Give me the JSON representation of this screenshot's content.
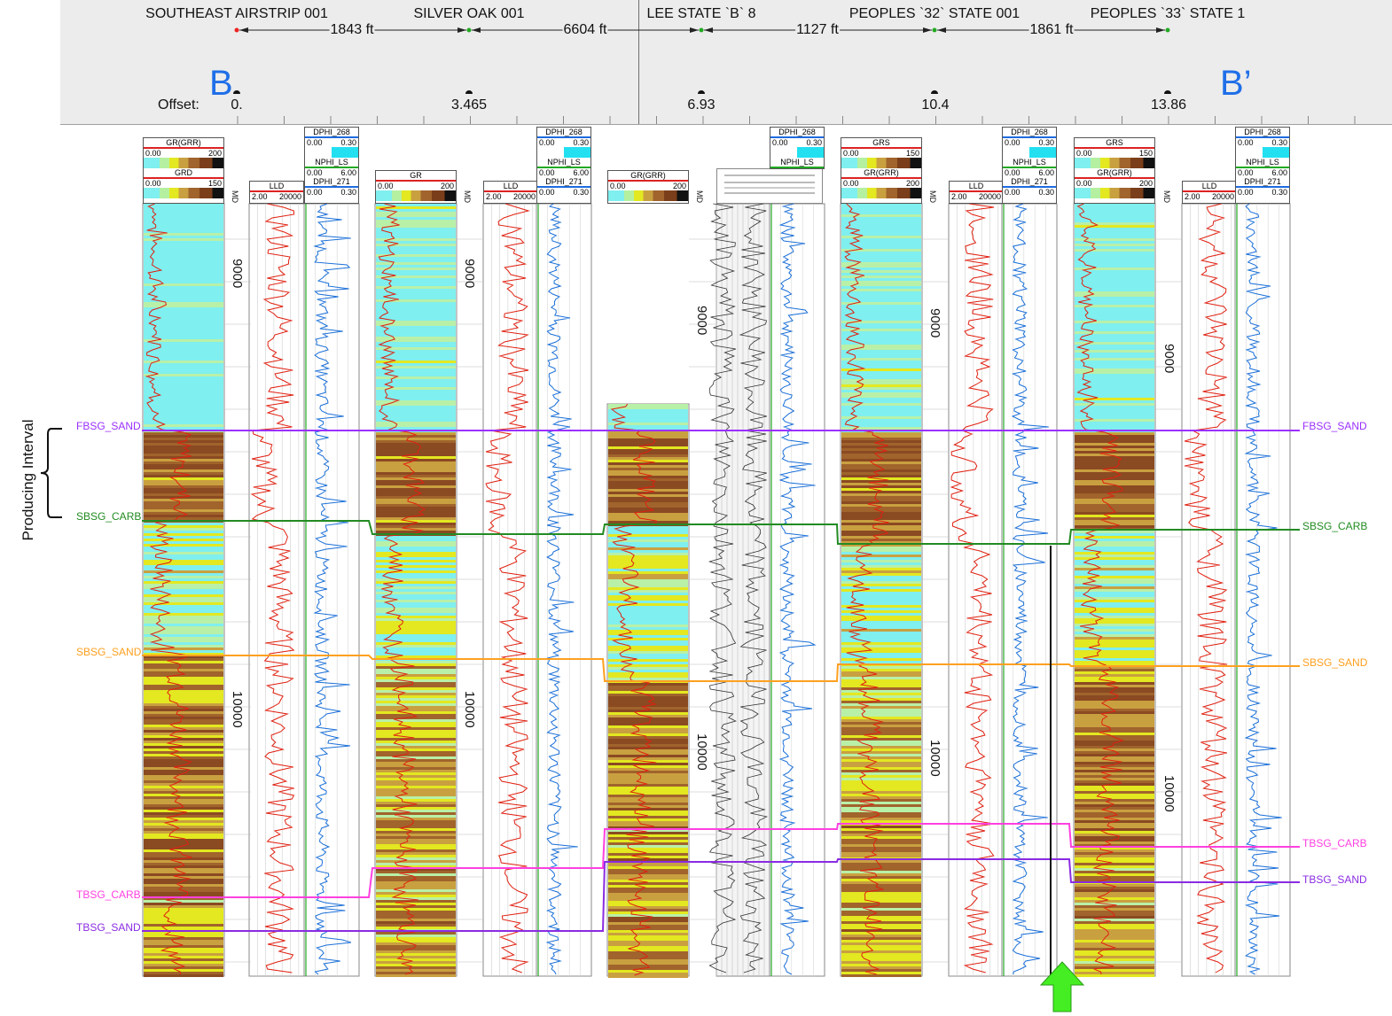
{
  "wells": [
    {
      "name": "SOUTHEAST AIRSTRIP 001",
      "offset": "0."
    },
    {
      "name": "SILVER OAK 001",
      "offset": "3.465"
    },
    {
      "name": "LEE STATE `B` 8",
      "offset": "6.93"
    },
    {
      "name": "PEOPLES `32` STATE 001",
      "offset": "10.4"
    },
    {
      "name": "PEOPLES `33` STATE 1",
      "offset": "13.86"
    }
  ],
  "distances": [
    "1843 ft",
    "6604 ft",
    "1127 ft",
    "1861 ft"
  ],
  "offset_label": "Offset:",
  "section_start": "B",
  "section_end": "B’",
  "producing_interval": "Producing Interval",
  "formations": [
    {
      "name": "FBSG_SAND",
      "color": "#9b30ff"
    },
    {
      "name": "SBSG_CARB",
      "color": "#228b22"
    },
    {
      "name": "SBSG_SAND",
      "color": "#ffa020"
    },
    {
      "name": "TBSG_CARB",
      "color": "#ff40e0"
    },
    {
      "name": "TBSG_SAND",
      "color": "#8a2be2"
    }
  ],
  "depth_labels": {
    "a": "9000",
    "b": "10000"
  },
  "md_label": "MD",
  "tracks": {
    "w1_gr": {
      "name": "GR(GRR)",
      "min": "0.00",
      "max": "200"
    },
    "w1_grd": {
      "name": "GRD",
      "min": "0.00",
      "max": "150"
    },
    "w1_lld": {
      "name": "LLD",
      "min": "2.00",
      "max": "20000"
    },
    "dphi268": {
      "name": "DPHI_268",
      "min": "0.00",
      "max": "0.30"
    },
    "nphi": {
      "name": "NPHI_LS",
      "min": "0.00",
      "max": "6.00"
    },
    "dphi271": {
      "name": "DPHI_271",
      "min": "0.00",
      "max": "0.30"
    },
    "w2_gr": {
      "name": "GR",
      "min": "0.00",
      "max": "200"
    },
    "w3_gr": {
      "name": "GR(GRR)",
      "min": "0.00",
      "max": "200"
    },
    "w4_grs": {
      "name": "GRS",
      "min": "0.00",
      "max": "150"
    },
    "w5_grs": {
      "name": "GRS",
      "min": "0.00",
      "max": "150"
    }
  },
  "colors": {
    "cyan": "#7fefef",
    "yellow": "#e3e820",
    "brown": "#8a4a22",
    "gr_curve": "#e02010",
    "resist": "#e02010",
    "porosity": "#1a6fd8",
    "section_letters": "#1f6fe8",
    "arrow": "#44ee22"
  }
}
